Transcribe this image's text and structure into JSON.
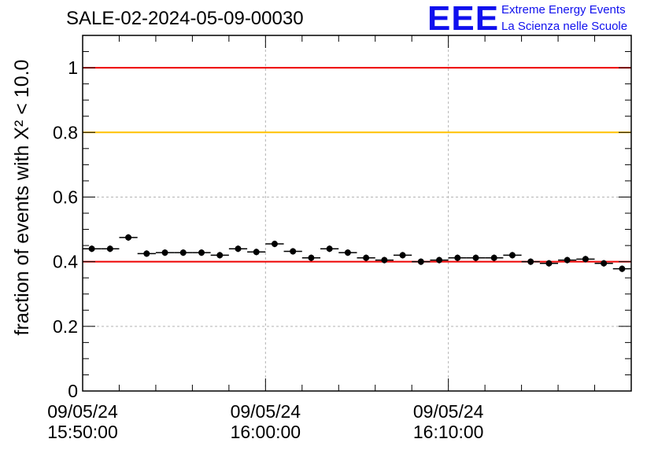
{
  "title": "SALE-02-2024-05-09-00030",
  "logo": {
    "mark": "EEE",
    "line1": "Extreme Energy Events",
    "line2": "La Scienza nelle Scuole"
  },
  "chart_data": {
    "type": "scatter",
    "ylabel": "fraction of events with X² < 10.0",
    "ylim": [
      0,
      1.1
    ],
    "yticks": [
      0,
      0.2,
      0.4,
      0.6,
      0.8,
      1
    ],
    "ytick_labels": [
      "0",
      "0.2",
      "0.4",
      "0.6",
      "0.8",
      "1"
    ],
    "xticks": [
      {
        "date": "09/05/24",
        "time": "15:50:00"
      },
      {
        "date": "09/05/24",
        "time": "16:00:00"
      },
      {
        "date": "09/05/24",
        "time": "16:10:00"
      }
    ],
    "xrange": [
      "15:50:00",
      "16:20:00"
    ],
    "grid": true,
    "reference_lines": [
      {
        "y": 1.0,
        "color": "#ee0000"
      },
      {
        "y": 0.8,
        "color": "#ffc000"
      },
      {
        "y": 0.4,
        "color": "#ee0000"
      }
    ],
    "series": [
      {
        "x": [
          "15:50:30",
          "15:51:30",
          "15:52:30",
          "15:53:30",
          "15:54:30",
          "15:55:30",
          "15:56:30",
          "15:57:30",
          "15:58:30",
          "15:59:30",
          "16:00:30",
          "16:01:30",
          "16:02:30",
          "16:03:30",
          "16:04:30",
          "16:05:30",
          "16:06:30",
          "16:07:30",
          "16:08:30",
          "16:09:30",
          "16:10:30",
          "16:11:30",
          "16:12:30",
          "16:13:30",
          "16:14:30",
          "16:15:30",
          "16:16:30",
          "16:17:30",
          "16:18:30",
          "16:19:30"
        ],
        "values": [
          0.44,
          0.44,
          0.475,
          0.425,
          0.428,
          0.428,
          0.428,
          0.42,
          0.44,
          0.43,
          0.455,
          0.432,
          0.412,
          0.44,
          0.428,
          0.412,
          0.405,
          0.42,
          0.4,
          0.405,
          0.412,
          0.412,
          0.412,
          0.42,
          0.4,
          0.395,
          0.405,
          0.408,
          0.395,
          0.378
        ],
        "errors": [
          0.01,
          0.01,
          0.01,
          0.01,
          0.01,
          0.01,
          0.01,
          0.01,
          0.01,
          0.01,
          0.01,
          0.01,
          0.01,
          0.01,
          0.01,
          0.01,
          0.01,
          0.01,
          0.01,
          0.01,
          0.01,
          0.01,
          0.01,
          0.01,
          0.01,
          0.01,
          0.01,
          0.01,
          0.01,
          0.01
        ]
      }
    ]
  }
}
